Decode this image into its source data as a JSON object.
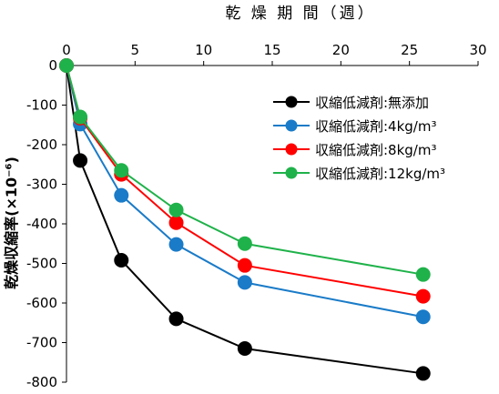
{
  "chart_data": {
    "type": "line",
    "xlabel": "乾 燥 期 間（週）",
    "ylabel": "乾燥収縮率(×10⁻⁶)",
    "xlim": [
      0,
      30
    ],
    "ylim": [
      -800,
      0
    ],
    "x_ticks": [
      0,
      5,
      10,
      15,
      20,
      25,
      30
    ],
    "y_ticks": [
      0,
      -100,
      -200,
      -300,
      -400,
      -500,
      -600,
      -700,
      -800
    ],
    "x_tick_labels": [
      "0",
      "5",
      "10",
      "15",
      "20",
      "25",
      "30"
    ],
    "y_tick_labels": [
      "0",
      "-100",
      "-200",
      "-300",
      "-400",
      "-500",
      "-600",
      "-700",
      "-800"
    ],
    "x_axis_position": "top",
    "grid": false,
    "legend_position": "center-right",
    "series": [
      {
        "name": "収縮低減剤:無添加",
        "color": "#000000",
        "x": [
          0,
          1,
          4,
          8,
          13,
          26
        ],
        "y": [
          0,
          -240,
          -492,
          -640,
          -715,
          -778
        ]
      },
      {
        "name": "収縮低減剤:4kg/m³",
        "color": "#1a7bc8",
        "x": [
          0,
          1,
          4,
          8,
          13,
          26
        ],
        "y": [
          0,
          -148,
          -328,
          -452,
          -548,
          -635
        ]
      },
      {
        "name": "収縮低減剤:8kg/m³",
        "color": "#ff0000",
        "x": [
          0,
          1,
          4,
          8,
          13,
          26
        ],
        "y": [
          0,
          -133,
          -275,
          -397,
          -505,
          -583
        ]
      },
      {
        "name": "収縮低減剤:12kg/m³",
        "color": "#1fb24a",
        "x": [
          0,
          1,
          4,
          8,
          13,
          26
        ],
        "y": [
          0,
          -130,
          -265,
          -365,
          -450,
          -528
        ]
      }
    ]
  }
}
